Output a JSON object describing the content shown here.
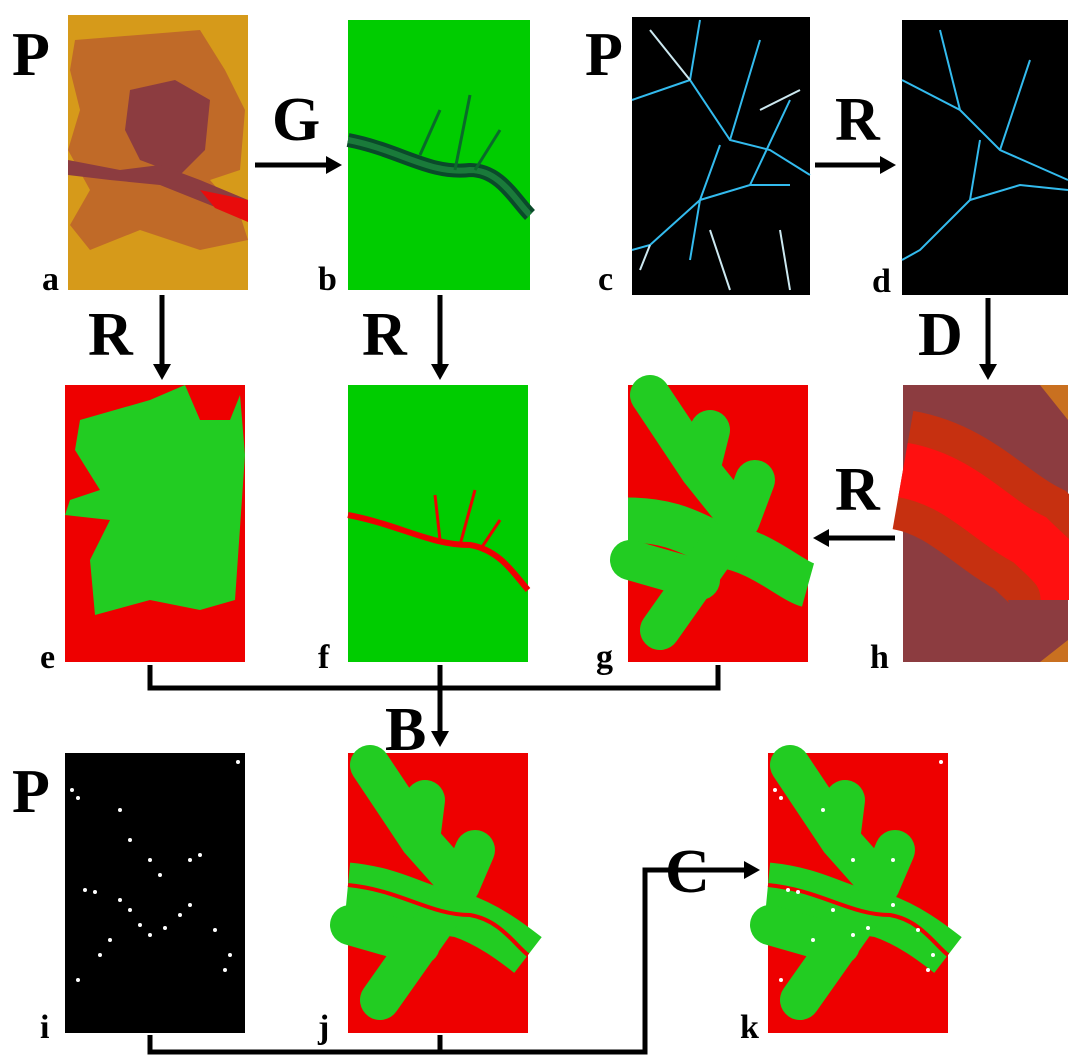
{
  "panels": [
    {
      "label": "a"
    },
    {
      "label": "b"
    },
    {
      "label": "c"
    },
    {
      "label": "d"
    },
    {
      "label": "e"
    },
    {
      "label": "f"
    },
    {
      "label": "g"
    },
    {
      "label": "h"
    },
    {
      "label": "i"
    },
    {
      "label": "j"
    },
    {
      "label": "k"
    }
  ],
  "operators": [
    {
      "label": "P"
    },
    {
      "label": "G"
    },
    {
      "label": "P"
    },
    {
      "label": "R"
    },
    {
      "label": "R"
    },
    {
      "label": "R"
    },
    {
      "label": "D"
    },
    {
      "label": "R"
    },
    {
      "label": "B"
    },
    {
      "label": "P"
    },
    {
      "label": "C"
    }
  ]
}
